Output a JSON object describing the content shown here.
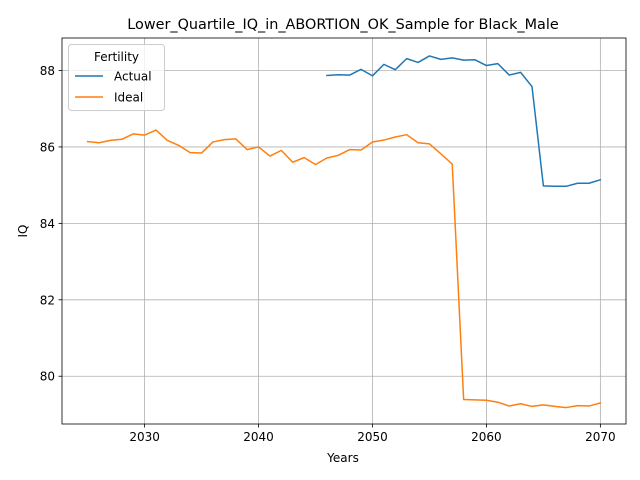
{
  "chart_data": {
    "type": "line",
    "title": "Lower_Quartile_IQ_in_ABORTION_OK_Sample for Black_Male",
    "xlabel": "Years",
    "ylabel": "IQ",
    "xlim": [
      2022.75,
      2072.25
    ],
    "ylim": [
      78.75,
      88.85
    ],
    "xticks": [
      2030,
      2040,
      2050,
      2060,
      2070
    ],
    "yticks": [
      80,
      82,
      84,
      86,
      88
    ],
    "grid": true,
    "legend": {
      "title": "Fertility",
      "placement": "upper left"
    },
    "series": [
      {
        "name": "Actual",
        "color": "#1f77b4",
        "x": [
          2046,
          2047,
          2048,
          2049,
          2050,
          2051,
          2052,
          2053,
          2054,
          2055,
          2056,
          2057,
          2058,
          2059,
          2060,
          2061,
          2062,
          2063,
          2064,
          2065,
          2066,
          2067,
          2068,
          2069,
          2070
        ],
        "y": [
          87.87,
          87.89,
          87.88,
          88.03,
          87.86,
          88.16,
          88.02,
          88.31,
          88.21,
          88.38,
          88.29,
          88.33,
          88.27,
          88.28,
          88.13,
          88.18,
          87.88,
          87.95,
          87.58,
          84.98,
          84.97,
          84.97,
          85.05,
          85.05,
          85.14
        ]
      },
      {
        "name": "Ideal",
        "color": "#ff7f0e",
        "x": [
          2025,
          2026,
          2027,
          2028,
          2029,
          2030,
          2031,
          2032,
          2033,
          2034,
          2035,
          2036,
          2037,
          2038,
          2039,
          2040,
          2041,
          2042,
          2043,
          2044,
          2045,
          2046,
          2047,
          2048,
          2049,
          2050,
          2051,
          2052,
          2053,
          2054,
          2055,
          2056,
          2057,
          2058,
          2059,
          2060,
          2061,
          2062,
          2063,
          2064,
          2065,
          2066,
          2067,
          2068,
          2069,
          2070
        ],
        "y": [
          86.14,
          86.11,
          86.17,
          86.2,
          86.34,
          86.31,
          86.44,
          86.17,
          86.04,
          85.85,
          85.84,
          86.13,
          86.19,
          86.21,
          85.93,
          86.0,
          85.76,
          85.91,
          85.6,
          85.72,
          85.54,
          85.71,
          85.78,
          85.93,
          85.92,
          86.13,
          86.18,
          86.26,
          86.32,
          86.11,
          86.08,
          85.82,
          85.55,
          79.39,
          79.38,
          79.37,
          79.32,
          79.22,
          79.28,
          79.21,
          79.25,
          79.21,
          79.18,
          79.23,
          79.22,
          79.3
        ]
      }
    ]
  }
}
